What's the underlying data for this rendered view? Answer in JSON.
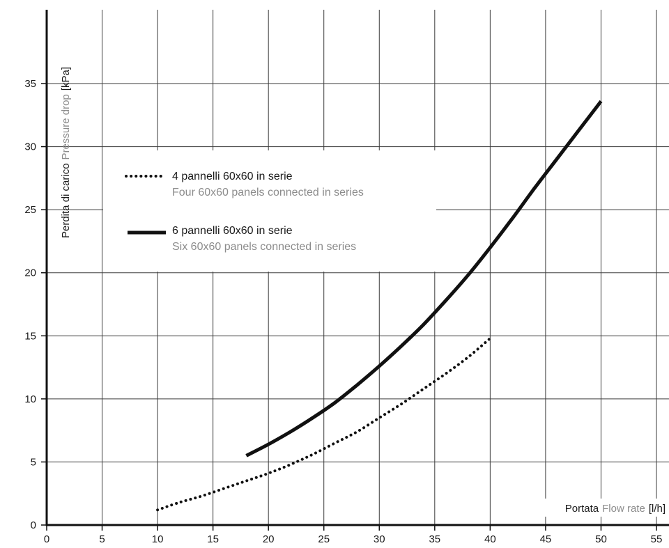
{
  "chart_data": {
    "type": "line",
    "ylabel": {
      "primary": "Perdita di carico",
      "secondary": "Pressure drop",
      "unit": "[kPa]"
    },
    "xlabel": {
      "primary": "Portata",
      "secondary": "Flow rate",
      "unit": "[l/h]"
    },
    "xlim": [
      0,
      55
    ],
    "ylim": [
      0,
      35
    ],
    "xticks": [
      "0",
      "5",
      "10",
      "15",
      "20",
      "25",
      "30",
      "35",
      "40",
      "45",
      "50",
      "55"
    ],
    "yticks": [
      "0",
      "5",
      "10",
      "15",
      "20",
      "25",
      "30",
      "35"
    ],
    "grid": true,
    "legend_position": "top-left",
    "series": [
      {
        "name": "4 pannelli 60x60 in serie",
        "name_secondary": "Four 60x60 panels connected in series",
        "style": "dotted",
        "x": [
          10,
          12,
          14,
          16,
          18,
          20,
          22,
          24,
          26,
          28,
          30,
          32,
          34,
          36,
          38,
          40
        ],
        "y": [
          1.2,
          1.8,
          2.3,
          2.9,
          3.5,
          4.1,
          4.8,
          5.6,
          6.5,
          7.4,
          8.5,
          9.6,
          10.8,
          12.0,
          13.3,
          14.8
        ]
      },
      {
        "name": "6 pannelli 60x60 in serie",
        "name_secondary": "Six 60x60 panels connected in series",
        "style": "solid",
        "x": [
          18,
          20,
          22,
          24,
          26,
          28,
          30,
          32,
          34,
          36,
          38,
          40,
          42,
          44,
          46,
          48,
          50
        ],
        "y": [
          5.5,
          6.4,
          7.4,
          8.5,
          9.7,
          11.1,
          12.6,
          14.2,
          15.9,
          17.8,
          19.8,
          22.0,
          24.3,
          26.7,
          29.0,
          31.3,
          33.6
        ]
      }
    ]
  }
}
